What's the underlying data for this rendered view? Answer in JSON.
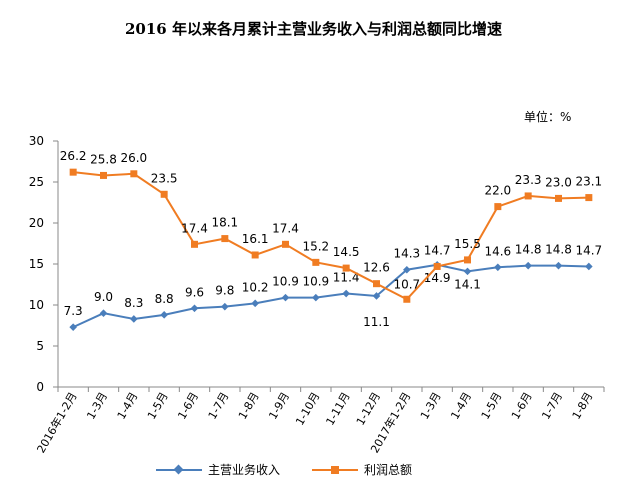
{
  "title": "2016 年以来各月累计主营业务收入与利润总额同比增速",
  "unit_label": "单位：%",
  "colors": {
    "revenue": "#4a7ebb",
    "profit": "#f07c22",
    "axis": "#888888",
    "text": "#000000"
  },
  "chart_data": {
    "type": "line",
    "title": "2016 年以来各月累计主营业务收入与利润总额同比增速",
    "xlabel": "",
    "ylabel": "",
    "ylim": [
      0,
      30
    ],
    "yticks": [
      0,
      5,
      10,
      15,
      20,
      25,
      30
    ],
    "grid": false,
    "legend_position": "bottom",
    "categories": [
      "2016年1-2月",
      "1-3月",
      "1-4月",
      "1-5月",
      "1-6月",
      "1-7月",
      "1-8月",
      "1-9月",
      "1-10月",
      "1-11月",
      "1-12月",
      "2017年1-2月",
      "1-3月",
      "1-4月",
      "1-5月",
      "1-6月",
      "1-7月",
      "1-8月"
    ],
    "series": [
      {
        "name": "主营业务收入",
        "marker": "diamond",
        "values": [
          7.3,
          9.0,
          8.3,
          8.8,
          9.6,
          9.8,
          10.2,
          10.9,
          10.9,
          11.4,
          11.1,
          14.3,
          14.9,
          14.1,
          14.6,
          14.8,
          14.8,
          14.7
        ],
        "labels": [
          "7.3",
          "9.0",
          "8.3",
          "8.8",
          "9.6",
          "9.8",
          "10.2",
          "10.9",
          "10.9",
          "11.4",
          "11.1",
          "14.3",
          "14.9",
          "14.1",
          "14.6",
          "14.8",
          "14.8",
          "14.7"
        ]
      },
      {
        "name": "利润总额",
        "marker": "square",
        "values": [
          26.2,
          25.8,
          26.0,
          23.5,
          17.4,
          18.1,
          16.1,
          17.4,
          15.2,
          14.5,
          12.6,
          10.7,
          14.7,
          15.5,
          22.0,
          23.3,
          23.0,
          23.1
        ],
        "labels": [
          "26.2",
          "25.8",
          "26.0",
          "23.5",
          "17.4",
          "18.1",
          "16.1",
          "17.4",
          "15.2",
          "14.5",
          "12.6",
          "10.7",
          "14.7",
          "15.5",
          "22.0",
          "23.3",
          "23.0",
          "23.1"
        ]
      }
    ]
  }
}
